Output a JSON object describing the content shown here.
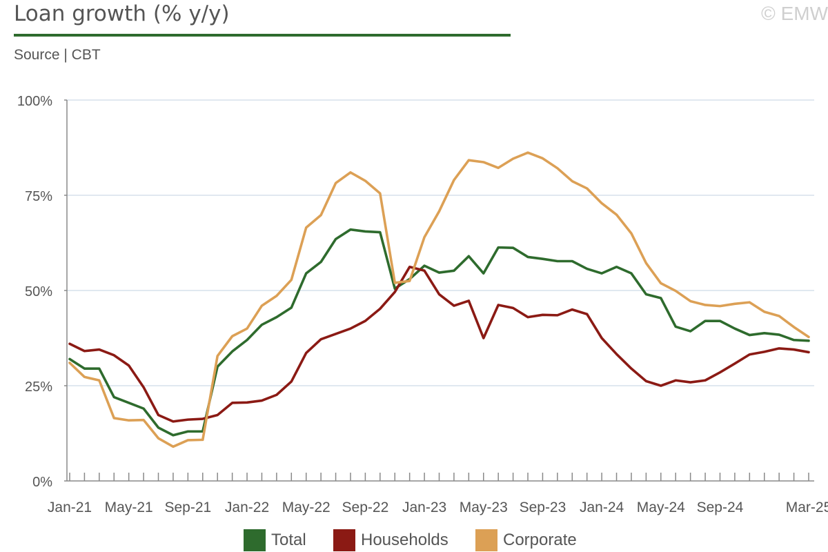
{
  "header": {
    "title": "Loan growth (% y/y)",
    "subtitle": "Source | CBT",
    "copyright": "© EMW"
  },
  "colors": {
    "total": "#2e6b2d",
    "households": "#8b1a14",
    "corporate": "#dca055",
    "axis": "#888888",
    "grid": "#d6e0ec"
  },
  "chart_data": {
    "type": "line",
    "title": "Loan growth (% y/y)",
    "xlabel": "",
    "ylabel": "",
    "ylim": [
      0,
      100
    ],
    "yticks": [
      0,
      25,
      50,
      75,
      100
    ],
    "ytick_labels": [
      "0%",
      "25%",
      "50%",
      "75%",
      "100%"
    ],
    "xtick_labels": [
      "Jan-21",
      "May-21",
      "Sep-21",
      "Jan-22",
      "May-22",
      "Sep-22",
      "Jan-23",
      "May-23",
      "Sep-23",
      "Jan-24",
      "May-24",
      "Sep-24",
      "Mar-25"
    ],
    "xtick_months": [
      "2021-01",
      "2021-05",
      "2021-09",
      "2022-01",
      "2022-05",
      "2022-09",
      "2023-01",
      "2023-05",
      "2023-09",
      "2024-01",
      "2024-05",
      "2024-09",
      "2025-03"
    ],
    "x": [
      "2021-01",
      "2021-02",
      "2021-03",
      "2021-04",
      "2021-05",
      "2021-06",
      "2021-07",
      "2021-08",
      "2021-09",
      "2021-10",
      "2021-11",
      "2021-12",
      "2022-01",
      "2022-02",
      "2022-03",
      "2022-04",
      "2022-05",
      "2022-06",
      "2022-07",
      "2022-08",
      "2022-09",
      "2022-10",
      "2022-11",
      "2022-12",
      "2023-01",
      "2023-02",
      "2023-03",
      "2023-04",
      "2023-05",
      "2023-06",
      "2023-07",
      "2023-08",
      "2023-09",
      "2023-10",
      "2023-11",
      "2023-12",
      "2024-01",
      "2024-02",
      "2024-03",
      "2024-04",
      "2024-05",
      "2024-06",
      "2024-07",
      "2024-08",
      "2024-09",
      "2024-10",
      "2024-11",
      "2024-12",
      "2025-01",
      "2025-02",
      "2025-03"
    ],
    "grid": true,
    "legend_position": "bottom",
    "series": [
      {
        "name": "Total",
        "color": "#2e6b2d",
        "values": [
          32.0,
          29.5,
          29.5,
          22.0,
          20.5,
          19.0,
          14.0,
          12.0,
          13.0,
          13.0,
          30.0,
          34.0,
          37.0,
          41.0,
          43.0,
          45.5,
          54.5,
          57.5,
          63.5,
          66.0,
          65.5,
          65.3,
          50.5,
          53.0,
          56.5,
          54.7,
          55.2,
          59.0,
          54.5,
          61.3,
          61.2,
          58.8,
          58.3,
          57.7,
          57.7,
          55.7,
          54.5,
          56.2,
          54.5,
          49.0,
          48.0,
          40.5,
          39.3,
          42.0,
          42.0,
          40.0,
          38.3,
          38.8,
          38.4,
          37.0,
          36.8
        ]
      },
      {
        "name": "Households",
        "color": "#8b1a14",
        "values": [
          36.0,
          34.1,
          34.5,
          33.0,
          30.3,
          24.6,
          17.3,
          15.6,
          16.1,
          16.3,
          17.3,
          20.5,
          20.6,
          21.1,
          22.6,
          26.1,
          33.6,
          37.2,
          38.6,
          40.0,
          42.0,
          45.2,
          49.6,
          56.2,
          55.2,
          49.0,
          46.0,
          47.3,
          37.5,
          46.2,
          45.4,
          43.0,
          43.6,
          43.5,
          45.0,
          43.8,
          37.5,
          33.3,
          29.5,
          26.2,
          25.0,
          26.4,
          25.9,
          26.4,
          28.5,
          30.8,
          33.2,
          33.9,
          34.8,
          34.5,
          33.8
        ]
      },
      {
        "name": "Corporate",
        "color": "#dca055",
        "values": [
          31.0,
          27.3,
          26.4,
          16.5,
          15.9,
          16.0,
          11.2,
          9.0,
          10.7,
          10.8,
          32.8,
          38.0,
          40.0,
          46.0,
          48.6,
          52.8,
          66.5,
          69.8,
          78.2,
          81.0,
          78.8,
          75.5,
          52.0,
          52.5,
          64.0,
          70.8,
          79.0,
          84.2,
          83.7,
          82.2,
          84.6,
          86.2,
          84.7,
          82.1,
          78.7,
          76.8,
          72.9,
          69.9,
          65.0,
          57.2,
          51.9,
          49.9,
          47.2,
          46.2,
          45.9,
          46.5,
          46.9,
          44.4,
          43.3,
          40.4,
          37.8
        ]
      }
    ]
  },
  "legend": {
    "items": [
      {
        "label": "Total",
        "color": "#2e6b2d"
      },
      {
        "label": "Households",
        "color": "#8b1a14"
      },
      {
        "label": "Corporate",
        "color": "#dca055"
      }
    ]
  }
}
